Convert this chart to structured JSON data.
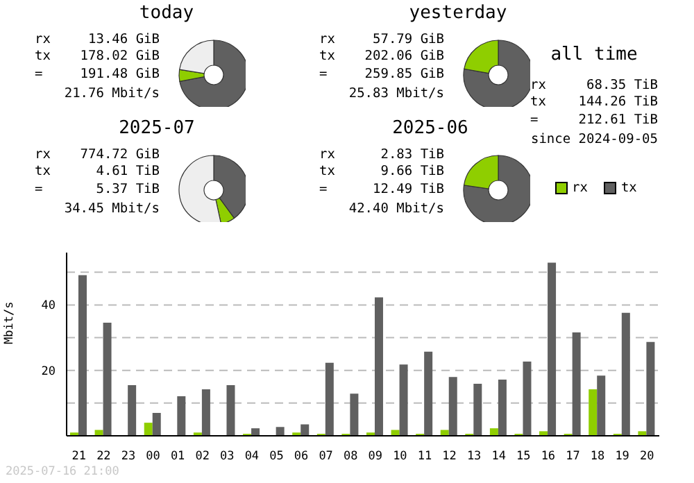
{
  "chart_data": [
    {
      "type": "donut",
      "title": "today",
      "categories": [
        null,
        null,
        null
      ],
      "values": [
        72,
        5.5,
        22.5
      ],
      "colors": [
        "#606060",
        "#8fce00",
        "#eeeeee"
      ],
      "annotations": [
        "rx",
        "13.46 GiB",
        "tx",
        "178.02 GiB",
        "=",
        "191.48 GiB",
        "21.76 Mbit/s"
      ]
    },
    {
      "type": "donut",
      "title": "yesterday",
      "categories": [
        null,
        null
      ],
      "values": [
        77.8,
        22.2
      ],
      "colors": [
        "#606060",
        "#8fce00"
      ],
      "annotations": [
        "rx",
        "57.79 GiB",
        "tx",
        "202.06 GiB",
        "=",
        "259.85 GiB",
        "25.83 Mbit/s"
      ]
    },
    {
      "type": "donut",
      "title": "2025-07",
      "categories": [
        null,
        null,
        null
      ],
      "values": [
        40,
        6.6,
        53.4
      ],
      "colors": [
        "#606060",
        "#8fce00",
        "#eeeeee"
      ],
      "annotations": [
        "rx",
        "774.72 GiB",
        "tx",
        "4.61 TiB",
        "=",
        "5.37 TiB",
        "34.45 Mbit/s"
      ]
    },
    {
      "type": "donut",
      "title": "2025-06",
      "categories": [
        null,
        null
      ],
      "values": [
        77.3,
        22.7
      ],
      "colors": [
        "#606060",
        "#8fce00"
      ],
      "annotations": [
        "rx",
        "2.83 TiB",
        "tx",
        "9.66 TiB",
        "=",
        "12.49 TiB",
        "42.40 Mbit/s"
      ]
    },
    {
      "type": "other",
      "title": "all time",
      "annotations": [
        "rx",
        "68.35 TiB",
        "tx",
        "144.26 TiB",
        "=",
        "212.61 TiB",
        "since 2024-09-05"
      ]
    },
    {
      "type": "bar",
      "ylabel": "Mbit/s",
      "categories": [
        "21",
        "22",
        "23",
        "00",
        "01",
        "02",
        "03",
        "04",
        "05",
        "06",
        "07",
        "08",
        "09",
        "10",
        "11",
        "12",
        "13",
        "14",
        "15",
        "16",
        "17",
        "18",
        "19",
        "20"
      ],
      "series": [
        {
          "name": "rx",
          "color": "#8fce00",
          "values": [
            1.0,
            1.8,
            0,
            4.0,
            0,
            1.0,
            0,
            0.6,
            0,
            1.0,
            0.6,
            0.6,
            1.0,
            1.8,
            0.6,
            1.8,
            0.6,
            2.3,
            0.6,
            1.4,
            0.6,
            14.2,
            0.6,
            1.4
          ]
        },
        {
          "name": "tx",
          "color": "#606060",
          "values": [
            49.1,
            34.6,
            15.5,
            7.0,
            12.1,
            14.2,
            15.5,
            2.3,
            2.7,
            3.5,
            22.3,
            12.9,
            42.3,
            21.8,
            25.7,
            18.0,
            15.9,
            17.2,
            22.7,
            52.9,
            31.6,
            18.4,
            37.6,
            28.7
          ]
        }
      ],
      "ylim": [
        0,
        56
      ],
      "yticks": [
        {
          "value": 0,
          "label": null
        },
        {
          "value": 10,
          "label": null
        },
        20,
        {
          "value": 30,
          "label": null
        },
        40,
        {
          "value": 50,
          "label": null
        }
      ],
      "grid": "y",
      "legend": "top right",
      "annotations": [
        "2025-07-16 21:00"
      ]
    }
  ]
}
